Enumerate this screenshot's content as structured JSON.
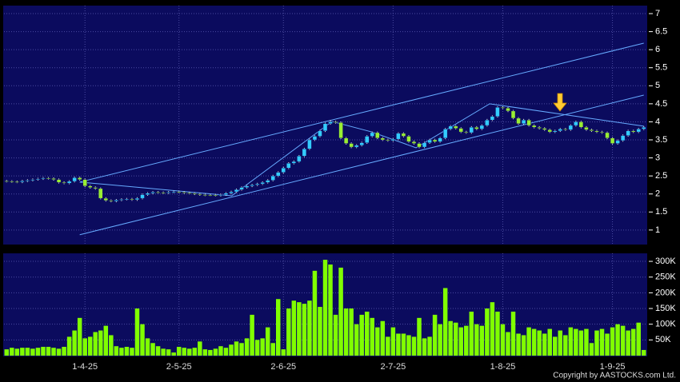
{
  "credit": "Copyright by AASTOCKS.com Ltd.",
  "chart_data": [
    {
      "type": "candlestick",
      "up_color": "#33ccff",
      "down_color": "#99ee33",
      "wick_color": "#dddddd",
      "ylim": [
        0.62,
        7.2
      ],
      "yticks": [
        1,
        1.5,
        2,
        2.5,
        3,
        3.5,
        4,
        4.5,
        5,
        5.5,
        6,
        6.5,
        7
      ],
      "grid": true,
      "line_color": "#66aaff",
      "lines": [
        {
          "points": [
            [
              14,
              2.33
            ],
            [
              122,
              6.18
            ]
          ]
        },
        {
          "points": [
            [
              14,
              0.87
            ],
            [
              122,
              4.74
            ]
          ]
        },
        {
          "points": [
            [
              14,
              2.33
            ],
            [
              43.1,
              1.95
            ],
            [
              62.3,
              4.01
            ],
            [
              69.9,
              3.72
            ],
            [
              78.4,
              3.28
            ],
            [
              92.5,
              4.5
            ],
            [
              122,
              3.88
            ]
          ]
        }
      ],
      "ohlc": [
        [
          2.36,
          2.39,
          2.32,
          2.35
        ],
        [
          2.35,
          2.38,
          2.31,
          2.34
        ],
        [
          2.34,
          2.37,
          2.3,
          2.33
        ],
        [
          2.33,
          2.39,
          2.3,
          2.36
        ],
        [
          2.36,
          2.41,
          2.33,
          2.38
        ],
        [
          2.38,
          2.43,
          2.35,
          2.4
        ],
        [
          2.4,
          2.45,
          2.37,
          2.42
        ],
        [
          2.42,
          2.47,
          2.39,
          2.44
        ],
        [
          2.44,
          2.47,
          2.4,
          2.43
        ],
        [
          2.43,
          2.46,
          2.37,
          2.4
        ],
        [
          2.4,
          2.43,
          2.29,
          2.32
        ],
        [
          2.32,
          2.35,
          2.27,
          2.3
        ],
        [
          2.3,
          2.38,
          2.27,
          2.35
        ],
        [
          2.35,
          2.48,
          2.32,
          2.45
        ],
        [
          2.45,
          2.48,
          2.37,
          2.4
        ],
        [
          2.4,
          2.43,
          2.19,
          2.22
        ],
        [
          2.22,
          2.25,
          2.15,
          2.18
        ],
        [
          2.18,
          2.21,
          2.12,
          2.15
        ],
        [
          2.15,
          2.18,
          1.85,
          1.88
        ],
        [
          1.88,
          1.91,
          1.79,
          1.82
        ],
        [
          1.82,
          1.85,
          1.77,
          1.8
        ],
        [
          1.8,
          1.86,
          1.77,
          1.83
        ],
        [
          1.83,
          1.88,
          1.8,
          1.85
        ],
        [
          1.85,
          1.89,
          1.82,
          1.86
        ],
        [
          1.86,
          1.89,
          1.81,
          1.84
        ],
        [
          1.84,
          1.91,
          1.81,
          1.88
        ],
        [
          1.88,
          2.01,
          1.85,
          1.98
        ],
        [
          1.98,
          2.05,
          1.95,
          2.02
        ],
        [
          2.02,
          2.08,
          1.99,
          2.05
        ],
        [
          2.05,
          2.08,
          2.01,
          2.04
        ],
        [
          2.04,
          2.07,
          2.0,
          2.03
        ],
        [
          2.03,
          2.08,
          2.0,
          2.05
        ],
        [
          2.05,
          2.09,
          2.02,
          2.06
        ],
        [
          2.06,
          2.09,
          2.02,
          2.05
        ],
        [
          2.05,
          2.08,
          2.0,
          2.03
        ],
        [
          2.03,
          2.06,
          1.99,
          2.02
        ],
        [
          2.02,
          2.05,
          1.97,
          2.0
        ],
        [
          2.0,
          2.03,
          1.95,
          1.98
        ],
        [
          1.98,
          2.01,
          1.94,
          1.97
        ],
        [
          1.97,
          2.0,
          1.94,
          1.97
        ],
        [
          1.97,
          2.0,
          1.93,
          1.96
        ],
        [
          1.96,
          2.01,
          1.93,
          1.98
        ],
        [
          1.98,
          2.05,
          1.95,
          2.02
        ],
        [
          2.02,
          2.09,
          1.99,
          2.06
        ],
        [
          2.06,
          2.15,
          2.03,
          2.12
        ],
        [
          2.12,
          2.21,
          2.09,
          2.18
        ],
        [
          2.18,
          2.25,
          2.15,
          2.22
        ],
        [
          2.22,
          2.28,
          2.19,
          2.25
        ],
        [
          2.25,
          2.31,
          2.22,
          2.28
        ],
        [
          2.28,
          2.35,
          2.25,
          2.32
        ],
        [
          2.32,
          2.41,
          2.29,
          2.38
        ],
        [
          2.38,
          2.53,
          2.35,
          2.5
        ],
        [
          2.5,
          2.63,
          2.47,
          2.6
        ],
        [
          2.6,
          2.75,
          2.57,
          2.72
        ],
        [
          2.72,
          2.88,
          2.69,
          2.85
        ],
        [
          2.85,
          2.93,
          2.82,
          2.9
        ],
        [
          2.9,
          3.08,
          2.87,
          3.05
        ],
        [
          3.05,
          3.28,
          3.02,
          3.25
        ],
        [
          3.25,
          3.53,
          3.22,
          3.5
        ],
        [
          3.5,
          3.63,
          3.47,
          3.6
        ],
        [
          3.6,
          3.78,
          3.57,
          3.75
        ],
        [
          3.75,
          3.98,
          3.72,
          3.95
        ],
        [
          3.95,
          4.05,
          3.92,
          4.0
        ],
        [
          4.0,
          4.03,
          3.95,
          3.98
        ],
        [
          3.98,
          4.01,
          3.52,
          3.55
        ],
        [
          3.55,
          3.58,
          3.37,
          3.4
        ],
        [
          3.4,
          3.43,
          3.27,
          3.3
        ],
        [
          3.3,
          3.38,
          3.27,
          3.35
        ],
        [
          3.35,
          3.45,
          3.32,
          3.42
        ],
        [
          3.42,
          3.63,
          3.39,
          3.6
        ],
        [
          3.6,
          3.73,
          3.57,
          3.7
        ],
        [
          3.7,
          3.73,
          3.52,
          3.55
        ],
        [
          3.55,
          3.58,
          3.47,
          3.5
        ],
        [
          3.5,
          3.53,
          3.45,
          3.48
        ],
        [
          3.48,
          3.55,
          3.45,
          3.52
        ],
        [
          3.52,
          3.71,
          3.49,
          3.68
        ],
        [
          3.68,
          3.71,
          3.57,
          3.6
        ],
        [
          3.6,
          3.63,
          3.42,
          3.45
        ],
        [
          3.45,
          3.48,
          3.37,
          3.4
        ],
        [
          3.4,
          3.43,
          3.27,
          3.3
        ],
        [
          3.3,
          3.45,
          3.27,
          3.42
        ],
        [
          3.42,
          3.53,
          3.39,
          3.5
        ],
        [
          3.5,
          3.53,
          3.42,
          3.45
        ],
        [
          3.45,
          3.58,
          3.42,
          3.55
        ],
        [
          3.55,
          3.83,
          3.52,
          3.8
        ],
        [
          3.8,
          3.91,
          3.77,
          3.88
        ],
        [
          3.88,
          3.91,
          3.79,
          3.82
        ],
        [
          3.82,
          3.85,
          3.69,
          3.72
        ],
        [
          3.72,
          3.75,
          3.67,
          3.7
        ],
        [
          3.7,
          3.88,
          3.67,
          3.85
        ],
        [
          3.85,
          3.88,
          3.77,
          3.8
        ],
        [
          3.8,
          3.93,
          3.77,
          3.9
        ],
        [
          3.9,
          4.08,
          3.87,
          4.05
        ],
        [
          4.05,
          4.18,
          4.02,
          4.15
        ],
        [
          4.15,
          4.43,
          4.12,
          4.4
        ],
        [
          4.4,
          4.43,
          4.35,
          4.38
        ],
        [
          4.38,
          4.41,
          4.27,
          4.3
        ],
        [
          4.3,
          4.33,
          4.07,
          4.1
        ],
        [
          4.1,
          4.13,
          3.92,
          3.95
        ],
        [
          3.95,
          4.08,
          3.92,
          4.05
        ],
        [
          4.05,
          4.08,
          3.87,
          3.9
        ],
        [
          3.9,
          3.93,
          3.82,
          3.85
        ],
        [
          3.85,
          3.88,
          3.79,
          3.82
        ],
        [
          3.82,
          3.85,
          3.75,
          3.78
        ],
        [
          3.78,
          3.81,
          3.69,
          3.72
        ],
        [
          3.72,
          3.78,
          3.69,
          3.75
        ],
        [
          3.75,
          3.83,
          3.72,
          3.8
        ],
        [
          3.8,
          3.83,
          3.75,
          3.78
        ],
        [
          3.78,
          3.93,
          3.75,
          3.9
        ],
        [
          3.9,
          4.03,
          3.87,
          4.0
        ],
        [
          4.0,
          4.03,
          3.82,
          3.85
        ],
        [
          3.85,
          3.88,
          3.75,
          3.78
        ],
        [
          3.78,
          3.81,
          3.72,
          3.75
        ],
        [
          3.75,
          3.78,
          3.69,
          3.72
        ],
        [
          3.72,
          3.75,
          3.67,
          3.7
        ],
        [
          3.7,
          3.73,
          3.52,
          3.55
        ],
        [
          3.55,
          3.58,
          3.37,
          3.4
        ],
        [
          3.4,
          3.51,
          3.37,
          3.48
        ],
        [
          3.48,
          3.65,
          3.45,
          3.62
        ],
        [
          3.62,
          3.78,
          3.59,
          3.75
        ],
        [
          3.75,
          3.78,
          3.69,
          3.72
        ],
        [
          3.72,
          3.83,
          3.69,
          3.8
        ],
        [
          3.8,
          3.88,
          3.77,
          3.85
        ]
      ]
    },
    {
      "type": "bar",
      "color": "#80ff00",
      "ylim": [
        0,
        323000
      ],
      "yticks": [
        {
          "value": 50000,
          "label": "50K"
        },
        {
          "value": 100000,
          "label": "100K"
        },
        {
          "value": 150000,
          "label": "150K"
        },
        {
          "value": 200000,
          "label": "200K"
        },
        {
          "value": 250000,
          "label": "250K"
        },
        {
          "value": 300000,
          "label": "300K"
        }
      ],
      "grid": true,
      "categories": [
        null,
        null,
        null,
        null,
        null,
        null,
        null,
        null,
        null,
        null,
        null,
        null,
        null,
        null,
        null,
        "1-4-25",
        null,
        null,
        null,
        null,
        null,
        null,
        null,
        null,
        null,
        null,
        null,
        null,
        null,
        null,
        null,
        null,
        null,
        "2-5-25",
        null,
        null,
        null,
        null,
        null,
        null,
        null,
        null,
        null,
        null,
        null,
        null,
        null,
        null,
        null,
        null,
        null,
        null,
        null,
        "2-6-25",
        null,
        null,
        null,
        null,
        null,
        null,
        null,
        null,
        null,
        null,
        null,
        null,
        null,
        null,
        null,
        null,
        null,
        null,
        null,
        null,
        "2-7-25",
        null,
        null,
        null,
        null,
        null,
        null,
        null,
        null,
        null,
        null,
        null,
        null,
        null,
        null,
        null,
        null,
        null,
        null,
        null,
        null,
        "1-8-25",
        null,
        null,
        null,
        null,
        null,
        null,
        null,
        null,
        null,
        null,
        null,
        null,
        null,
        null,
        null,
        null,
        null,
        null,
        null,
        null,
        "1-9-25",
        null,
        null,
        null,
        null,
        null,
        null
      ],
      "values": [
        20000,
        25000,
        22000,
        25000,
        25000,
        22000,
        25000,
        28000,
        28000,
        25000,
        22000,
        28000,
        60000,
        80000,
        120000,
        55000,
        60000,
        75000,
        80000,
        95000,
        65000,
        30000,
        25000,
        28000,
        25000,
        150000,
        100000,
        55000,
        40000,
        30000,
        22000,
        20000,
        10000,
        28000,
        25000,
        22000,
        25000,
        45000,
        20000,
        18000,
        22000,
        30000,
        25000,
        35000,
        45000,
        40000,
        55000,
        130000,
        50000,
        55000,
        90000,
        40000,
        180000,
        20000,
        150000,
        175000,
        170000,
        165000,
        175000,
        270000,
        155000,
        305000,
        290000,
        130000,
        280000,
        150000,
        150000,
        100000,
        130000,
        140000,
        120000,
        90000,
        110000,
        60000,
        90000,
        70000,
        70000,
        65000,
        60000,
        120000,
        55000,
        60000,
        130000,
        100000,
        215000,
        110000,
        105000,
        90000,
        95000,
        140000,
        100000,
        95000,
        150000,
        170000,
        140000,
        100000,
        75000,
        140000,
        70000,
        65000,
        90000,
        85000,
        80000,
        70000,
        85000,
        60000,
        80000,
        65000,
        90000,
        85000,
        80000,
        85000,
        40000,
        80000,
        85000,
        70000,
        90000,
        100000,
        95000,
        80000,
        85000,
        105000,
        18000
      ]
    }
  ]
}
